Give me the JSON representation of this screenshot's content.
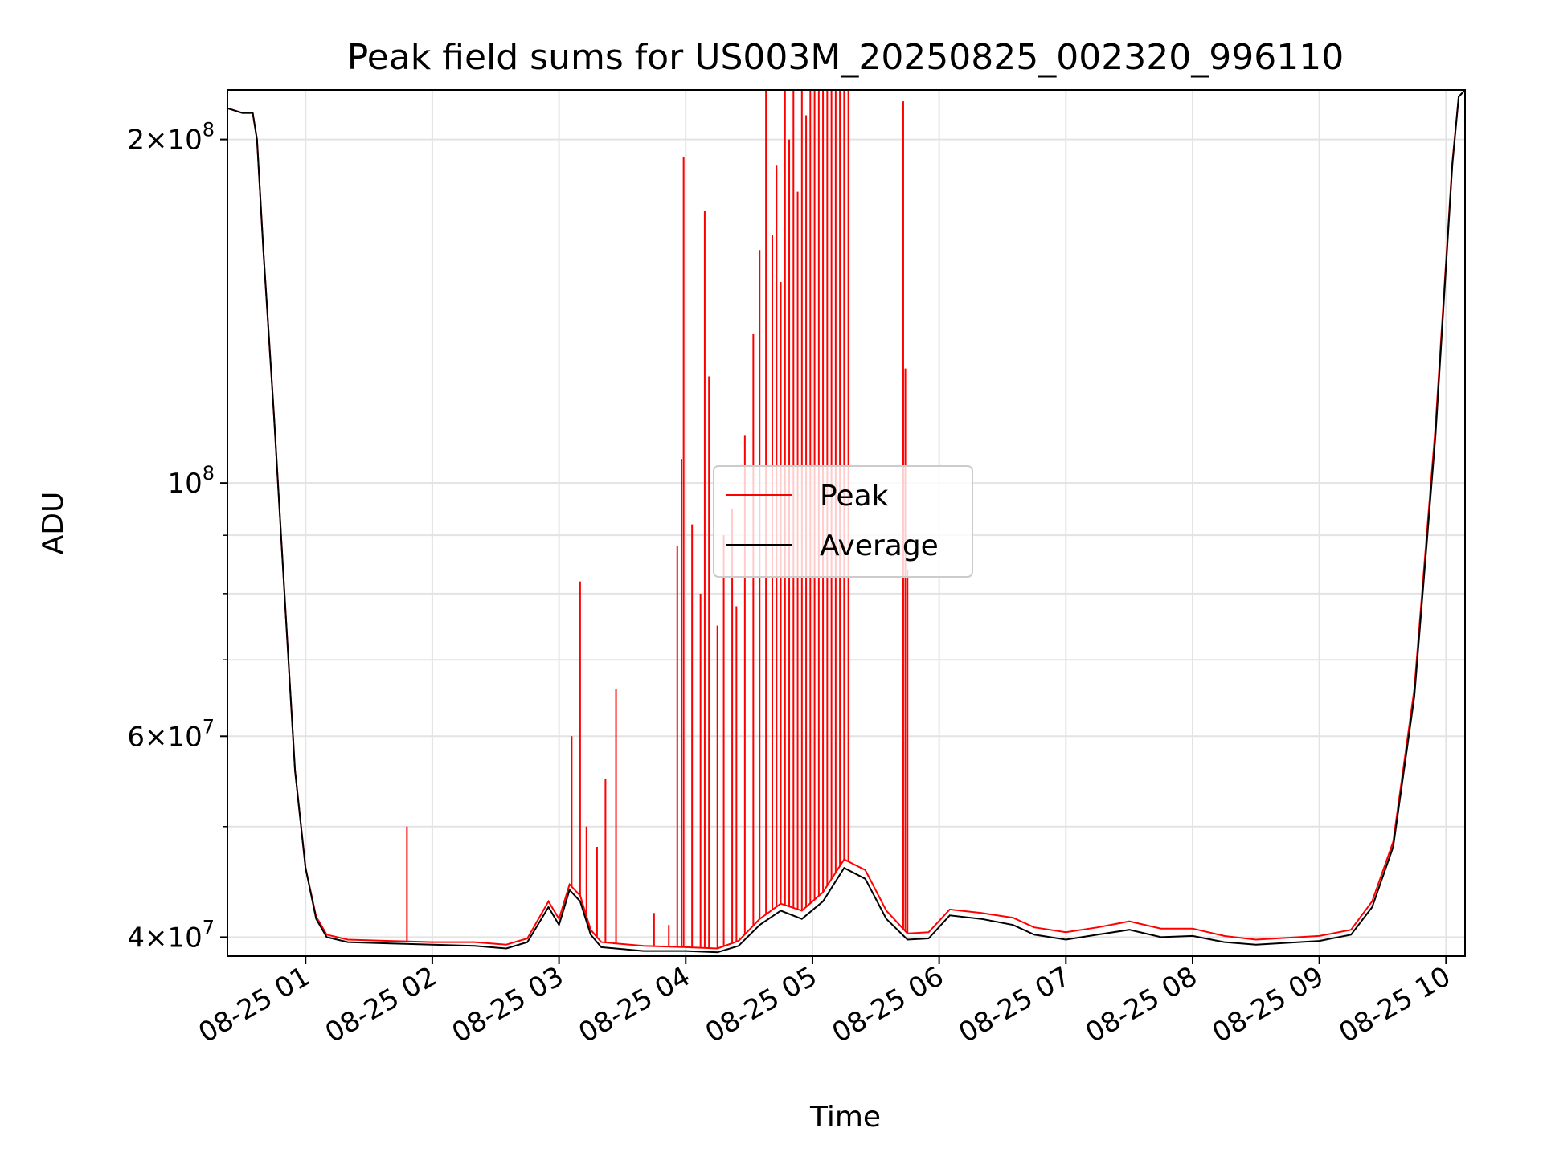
{
  "chart_data": {
    "type": "line",
    "title": "Peak field sums for US003M_20250825_002320_996110",
    "xlabel": "Time",
    "ylabel": "ADU",
    "yscale": "log",
    "ylim": [
      38500000,
      221000000
    ],
    "xlim": [
      "2025-08-25 00:23",
      "2025-08-25 10:09"
    ],
    "grid": true,
    "legend": {
      "placement": "center",
      "entries": [
        "Peak",
        "Average"
      ]
    },
    "x_ticks": [
      "08-25 01",
      "08-25 02",
      "08-25 03",
      "08-25 04",
      "08-25 05",
      "08-25 06",
      "08-25 07",
      "08-25 08",
      "08-25 09",
      "08-25 10"
    ],
    "y_ticks": [
      {
        "value": 40000000,
        "label": "4×10",
        "exp": "7"
      },
      {
        "value": 60000000,
        "label": "6×10",
        "exp": "7"
      },
      {
        "value": 100000000,
        "label": "10",
        "exp": "8"
      },
      {
        "value": 200000000,
        "label": "2×10",
        "exp": "8"
      }
    ],
    "series": [
      {
        "name": "Average",
        "color": "#000000",
        "points": [
          [
            "2025-08-25 00:23",
            213000000
          ],
          [
            "2025-08-25 00:30",
            211000000
          ],
          [
            "2025-08-25 00:35",
            211000000
          ],
          [
            "2025-08-25 00:37",
            200000000
          ],
          [
            "2025-08-25 00:40",
            160000000
          ],
          [
            "2025-08-25 00:45",
            115000000
          ],
          [
            "2025-08-25 00:50",
            80000000
          ],
          [
            "2025-08-25 00:55",
            56000000
          ],
          [
            "2025-08-25 01:00",
            46000000
          ],
          [
            "2025-08-25 01:05",
            41500000
          ],
          [
            "2025-08-25 01:10",
            40000000
          ],
          [
            "2025-08-25 01:20",
            39600000
          ],
          [
            "2025-08-25 01:40",
            39500000
          ],
          [
            "2025-08-25 02:00",
            39400000
          ],
          [
            "2025-08-25 02:20",
            39300000
          ],
          [
            "2025-08-25 02:35",
            39100000
          ],
          [
            "2025-08-25 02:45",
            39600000
          ],
          [
            "2025-08-25 02:55",
            42500000
          ],
          [
            "2025-08-25 03:00",
            41000000
          ],
          [
            "2025-08-25 03:05",
            44000000
          ],
          [
            "2025-08-25 03:10",
            43000000
          ],
          [
            "2025-08-25 03:15",
            40200000
          ],
          [
            "2025-08-25 03:20",
            39200000
          ],
          [
            "2025-08-25 03:40",
            38900000
          ],
          [
            "2025-08-25 04:00",
            38900000
          ],
          [
            "2025-08-25 04:15",
            38800000
          ],
          [
            "2025-08-25 04:25",
            39300000
          ],
          [
            "2025-08-25 04:35",
            41000000
          ],
          [
            "2025-08-25 04:45",
            42200000
          ],
          [
            "2025-08-25 04:55",
            41500000
          ],
          [
            "2025-08-25 05:05",
            43000000
          ],
          [
            "2025-08-25 05:15",
            46000000
          ],
          [
            "2025-08-25 05:25",
            45000000
          ],
          [
            "2025-08-25 05:35",
            41500000
          ],
          [
            "2025-08-25 05:45",
            39800000
          ],
          [
            "2025-08-25 05:55",
            39900000
          ],
          [
            "2025-08-25 06:05",
            41800000
          ],
          [
            "2025-08-25 06:20",
            41500000
          ],
          [
            "2025-08-25 06:35",
            41000000
          ],
          [
            "2025-08-25 06:45",
            40200000
          ],
          [
            "2025-08-25 07:00",
            39800000
          ],
          [
            "2025-08-25 07:15",
            40200000
          ],
          [
            "2025-08-25 07:30",
            40600000
          ],
          [
            "2025-08-25 07:45",
            40000000
          ],
          [
            "2025-08-25 08:00",
            40100000
          ],
          [
            "2025-08-25 08:15",
            39600000
          ],
          [
            "2025-08-25 08:30",
            39400000
          ],
          [
            "2025-08-25 09:00",
            39700000
          ],
          [
            "2025-08-25 09:15",
            40200000
          ],
          [
            "2025-08-25 09:25",
            42500000
          ],
          [
            "2025-08-25 09:35",
            48000000
          ],
          [
            "2025-08-25 09:45",
            65000000
          ],
          [
            "2025-08-25 09:55",
            110000000
          ],
          [
            "2025-08-25 10:03",
            190000000
          ],
          [
            "2025-08-25 10:06",
            218000000
          ],
          [
            "2025-08-25 10:09",
            221000000
          ]
        ]
      },
      {
        "name": "Peak",
        "color": "#ff0000",
        "points": [
          [
            "2025-08-25 00:23",
            213000000
          ],
          [
            "2025-08-25 00:30",
            211000000
          ],
          [
            "2025-08-25 00:35",
            211000000
          ],
          [
            "2025-08-25 00:37",
            200000000
          ],
          [
            "2025-08-25 00:40",
            160000000
          ],
          [
            "2025-08-25 00:45",
            115000000
          ],
          [
            "2025-08-25 00:50",
            80000000
          ],
          [
            "2025-08-25 00:55",
            56000000
          ],
          [
            "2025-08-25 01:00",
            46000000
          ],
          [
            "2025-08-25 01:05",
            41700000
          ],
          [
            "2025-08-25 01:10",
            40200000
          ],
          [
            "2025-08-25 01:20",
            39800000
          ],
          [
            "2025-08-25 01:40",
            39700000
          ],
          [
            "2025-08-25 02:00",
            39600000
          ],
          [
            "2025-08-25 02:20",
            39600000
          ],
          [
            "2025-08-25 02:35",
            39400000
          ],
          [
            "2025-08-25 02:45",
            39900000
          ],
          [
            "2025-08-25 02:55",
            43000000
          ],
          [
            "2025-08-25 03:00",
            41500000
          ],
          [
            "2025-08-25 03:05",
            44500000
          ],
          [
            "2025-08-25 03:10",
            43500000
          ],
          [
            "2025-08-25 03:15",
            40600000
          ],
          [
            "2025-08-25 03:20",
            39600000
          ],
          [
            "2025-08-25 03:40",
            39300000
          ],
          [
            "2025-08-25 04:00",
            39200000
          ],
          [
            "2025-08-25 04:15",
            39100000
          ],
          [
            "2025-08-25 04:25",
            39700000
          ],
          [
            "2025-08-25 04:35",
            41500000
          ],
          [
            "2025-08-25 04:45",
            42800000
          ],
          [
            "2025-08-25 04:55",
            42200000
          ],
          [
            "2025-08-25 05:05",
            43800000
          ],
          [
            "2025-08-25 05:15",
            46800000
          ],
          [
            "2025-08-25 05:25",
            45800000
          ],
          [
            "2025-08-25 05:35",
            42200000
          ],
          [
            "2025-08-25 05:45",
            40300000
          ],
          [
            "2025-08-25 05:55",
            40400000
          ],
          [
            "2025-08-25 06:05",
            42300000
          ],
          [
            "2025-08-25 06:20",
            42000000
          ],
          [
            "2025-08-25 06:35",
            41600000
          ],
          [
            "2025-08-25 06:45",
            40800000
          ],
          [
            "2025-08-25 07:00",
            40400000
          ],
          [
            "2025-08-25 07:15",
            40800000
          ],
          [
            "2025-08-25 07:30",
            41300000
          ],
          [
            "2025-08-25 07:45",
            40700000
          ],
          [
            "2025-08-25 08:00",
            40700000
          ],
          [
            "2025-08-25 08:15",
            40100000
          ],
          [
            "2025-08-25 08:30",
            39800000
          ],
          [
            "2025-08-25 09:00",
            40100000
          ],
          [
            "2025-08-25 09:15",
            40600000
          ],
          [
            "2025-08-25 09:25",
            43000000
          ],
          [
            "2025-08-25 09:35",
            48500000
          ],
          [
            "2025-08-25 09:45",
            66000000
          ],
          [
            "2025-08-25 09:55",
            112000000
          ],
          [
            "2025-08-25 10:03",
            191000000
          ],
          [
            "2025-08-25 10:06",
            218000000
          ],
          [
            "2025-08-25 10:09",
            221000000
          ]
        ],
        "spikes": [
          [
            "2025-08-25 01:48",
            50000000
          ],
          [
            "2025-08-25 03:06",
            60000000
          ],
          [
            "2025-08-25 03:10",
            82000000
          ],
          [
            "2025-08-25 03:13",
            50000000
          ],
          [
            "2025-08-25 03:18",
            48000000
          ],
          [
            "2025-08-25 03:22",
            55000000
          ],
          [
            "2025-08-25 03:27",
            66000000
          ],
          [
            "2025-08-25 03:45",
            42000000
          ],
          [
            "2025-08-25 03:52",
            41000000
          ],
          [
            "2025-08-25 03:56",
            88000000
          ],
          [
            "2025-08-25 03:58",
            105000000
          ],
          [
            "2025-08-25 03:59",
            193000000
          ],
          [
            "2025-08-25 04:03",
            92000000
          ],
          [
            "2025-08-25 04:07",
            80000000
          ],
          [
            "2025-08-25 04:09",
            173000000
          ],
          [
            "2025-08-25 04:11",
            124000000
          ],
          [
            "2025-08-25 04:15",
            75000000
          ],
          [
            "2025-08-25 04:18",
            90000000
          ],
          [
            "2025-08-25 04:22",
            95000000
          ],
          [
            "2025-08-25 04:24",
            78000000
          ],
          [
            "2025-08-25 04:28",
            110000000
          ],
          [
            "2025-08-25 04:32",
            135000000
          ],
          [
            "2025-08-25 04:35",
            160000000
          ],
          [
            "2025-08-25 04:38",
            221000000
          ],
          [
            "2025-08-25 04:41",
            165000000
          ],
          [
            "2025-08-25 04:43",
            190000000
          ],
          [
            "2025-08-25 04:45",
            150000000
          ],
          [
            "2025-08-25 04:47",
            221000000
          ],
          [
            "2025-08-25 04:49",
            200000000
          ],
          [
            "2025-08-25 04:51",
            221000000
          ],
          [
            "2025-08-25 04:53",
            180000000
          ],
          [
            "2025-08-25 04:55",
            221000000
          ],
          [
            "2025-08-25 04:57",
            210000000
          ],
          [
            "2025-08-25 04:59",
            221000000
          ],
          [
            "2025-08-25 05:01",
            221000000
          ],
          [
            "2025-08-25 05:03",
            221000000
          ],
          [
            "2025-08-25 05:05",
            221000000
          ],
          [
            "2025-08-25 05:07",
            221000000
          ],
          [
            "2025-08-25 05:09",
            221000000
          ],
          [
            "2025-08-25 05:11",
            221000000
          ],
          [
            "2025-08-25 05:13",
            221000000
          ],
          [
            "2025-08-25 05:15",
            221000000
          ],
          [
            "2025-08-25 05:17",
            221000000
          ],
          [
            "2025-08-25 05:43",
            216000000
          ],
          [
            "2025-08-25 05:44",
            126000000
          ],
          [
            "2025-08-25 05:45",
            84000000
          ]
        ]
      }
    ]
  }
}
